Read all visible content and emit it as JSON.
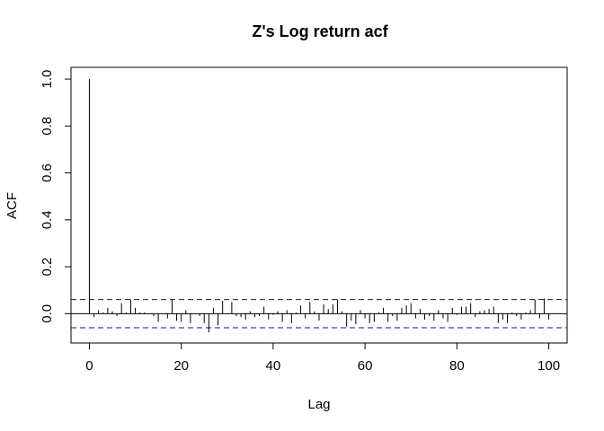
{
  "chart_data": {
    "type": "bar",
    "title": "Z's Log return acf",
    "xlabel": "Lag",
    "ylabel": "ACF",
    "xlim": [
      -4,
      104
    ],
    "ylim": [
      -0.125,
      1.05
    ],
    "x_ticks": [
      0,
      20,
      40,
      60,
      80,
      100
    ],
    "y_ticks": [
      0.0,
      0.2,
      0.4,
      0.6,
      0.8,
      1.0
    ],
    "x_tick_labels": [
      "0",
      "20",
      "40",
      "60",
      "80",
      "100"
    ],
    "y_tick_labels": [
      "0.0",
      "0.2",
      "0.4",
      "0.6",
      "0.8",
      "1.0"
    ],
    "confidence_bound": 0.06,
    "grid": false,
    "colors": {
      "bars": "#000000",
      "confidence": "#0000ff",
      "zero_line": "#000000"
    },
    "lags": [
      0,
      1,
      2,
      3,
      4,
      5,
      6,
      7,
      8,
      9,
      10,
      11,
      12,
      13,
      14,
      15,
      16,
      17,
      18,
      19,
      20,
      21,
      22,
      23,
      24,
      25,
      26,
      27,
      28,
      29,
      30,
      31,
      32,
      33,
      34,
      35,
      36,
      37,
      38,
      39,
      40,
      41,
      42,
      43,
      44,
      45,
      46,
      47,
      48,
      49,
      50,
      51,
      52,
      53,
      54,
      55,
      56,
      57,
      58,
      59,
      60,
      61,
      62,
      63,
      64,
      65,
      66,
      67,
      68,
      69,
      70,
      71,
      72,
      73,
      74,
      75,
      76,
      77,
      78,
      79,
      80,
      81,
      82,
      83,
      84,
      85,
      86,
      87,
      88,
      89,
      90,
      91,
      92,
      93,
      94,
      95,
      96,
      97,
      98,
      99,
      100
    ],
    "values": [
      1.0,
      -0.015,
      0.015,
      0.005,
      0.025,
      0.01,
      -0.01,
      0.045,
      0.005,
      0.06,
      0.025,
      0.005,
      0.005,
      0.0,
      -0.01,
      -0.035,
      0.0,
      -0.02,
      0.06,
      -0.03,
      -0.035,
      0.015,
      -0.04,
      0.0,
      -0.01,
      -0.04,
      -0.08,
      0.025,
      -0.05,
      0.055,
      0.0,
      0.05,
      -0.01,
      -0.015,
      -0.025,
      0.01,
      -0.015,
      -0.01,
      0.03,
      -0.025,
      -0.005,
      0.01,
      -0.035,
      0.015,
      -0.04,
      0.005,
      0.035,
      -0.02,
      0.05,
      0.01,
      -0.03,
      0.04,
      0.02,
      0.04,
      0.06,
      0.01,
      -0.055,
      -0.03,
      -0.045,
      0.015,
      -0.02,
      -0.04,
      -0.035,
      0.005,
      0.025,
      -0.035,
      -0.01,
      -0.03,
      0.025,
      0.035,
      0.045,
      -0.02,
      0.02,
      -0.025,
      -0.01,
      -0.03,
      0.015,
      -0.02,
      -0.035,
      0.025,
      -0.005,
      0.03,
      0.03,
      0.045,
      -0.015,
      0.01,
      0.015,
      0.02,
      0.03,
      -0.04,
      -0.025,
      -0.04,
      0.005,
      -0.01,
      -0.025,
      0.005,
      0.015,
      0.06,
      -0.02,
      0.065,
      -0.025
    ]
  }
}
